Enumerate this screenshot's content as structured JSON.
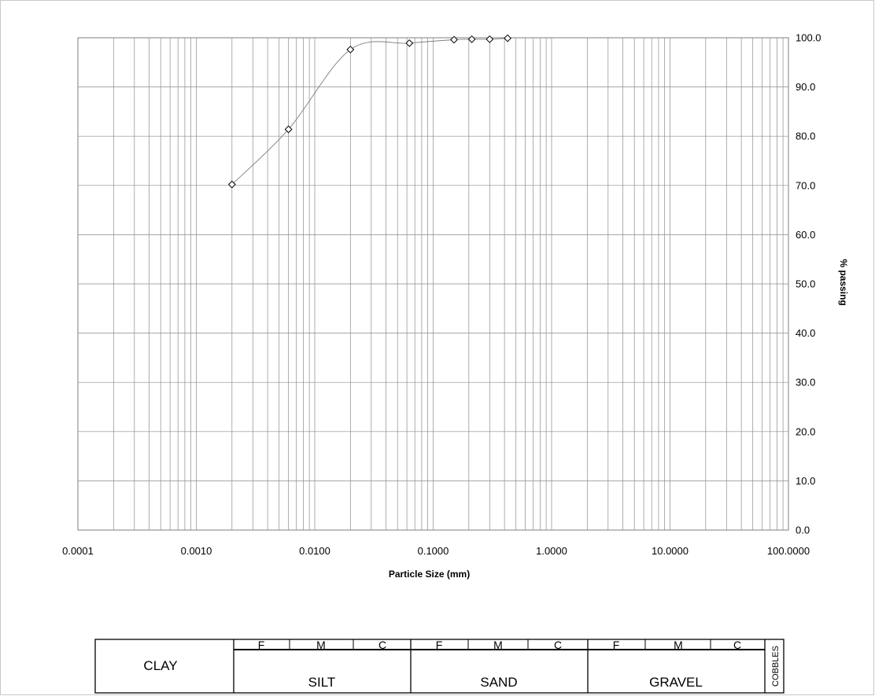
{
  "chart_data": {
    "type": "scatter",
    "title": "",
    "xlabel": "Particle Size (mm)",
    "ylabel": "% passing",
    "x_scale": "log",
    "xlim": [
      0.0001,
      100
    ],
    "ylim": [
      0,
      100
    ],
    "grid": true,
    "x_tick_labels": [
      "0.0001",
      "0.0010",
      "0.0100",
      "0.1000",
      "1.0000",
      "10.0000",
      "100.0000"
    ],
    "y_tick_labels": [
      "0.0",
      "10.0",
      "20.0",
      "30.0",
      "40.0",
      "50.0",
      "60.0",
      "70.0",
      "80.0",
      "90.0",
      "100.0"
    ],
    "series": [
      {
        "marker": "diamond",
        "line": "smooth",
        "color": "#000000",
        "x": [
          0.002,
          0.006,
          0.02,
          0.063,
          0.15,
          0.212,
          0.3,
          0.425
        ],
        "y": [
          70.2,
          81.4,
          97.6,
          98.9,
          99.6,
          99.7,
          99.7,
          99.9
        ]
      }
    ]
  },
  "classification": {
    "clay": "CLAY",
    "silt": "SILT",
    "sand": "SAND",
    "gravel": "GRAVEL",
    "cobbles": "COBBLES",
    "sub_labels": [
      "F",
      "M",
      "C",
      "F",
      "M",
      "C",
      "F",
      "M",
      "C"
    ]
  },
  "colors": {
    "grid": "#8c8c8c",
    "plot_border": "#7f7f7f",
    "curve": "#808080",
    "marker": "#000000"
  }
}
